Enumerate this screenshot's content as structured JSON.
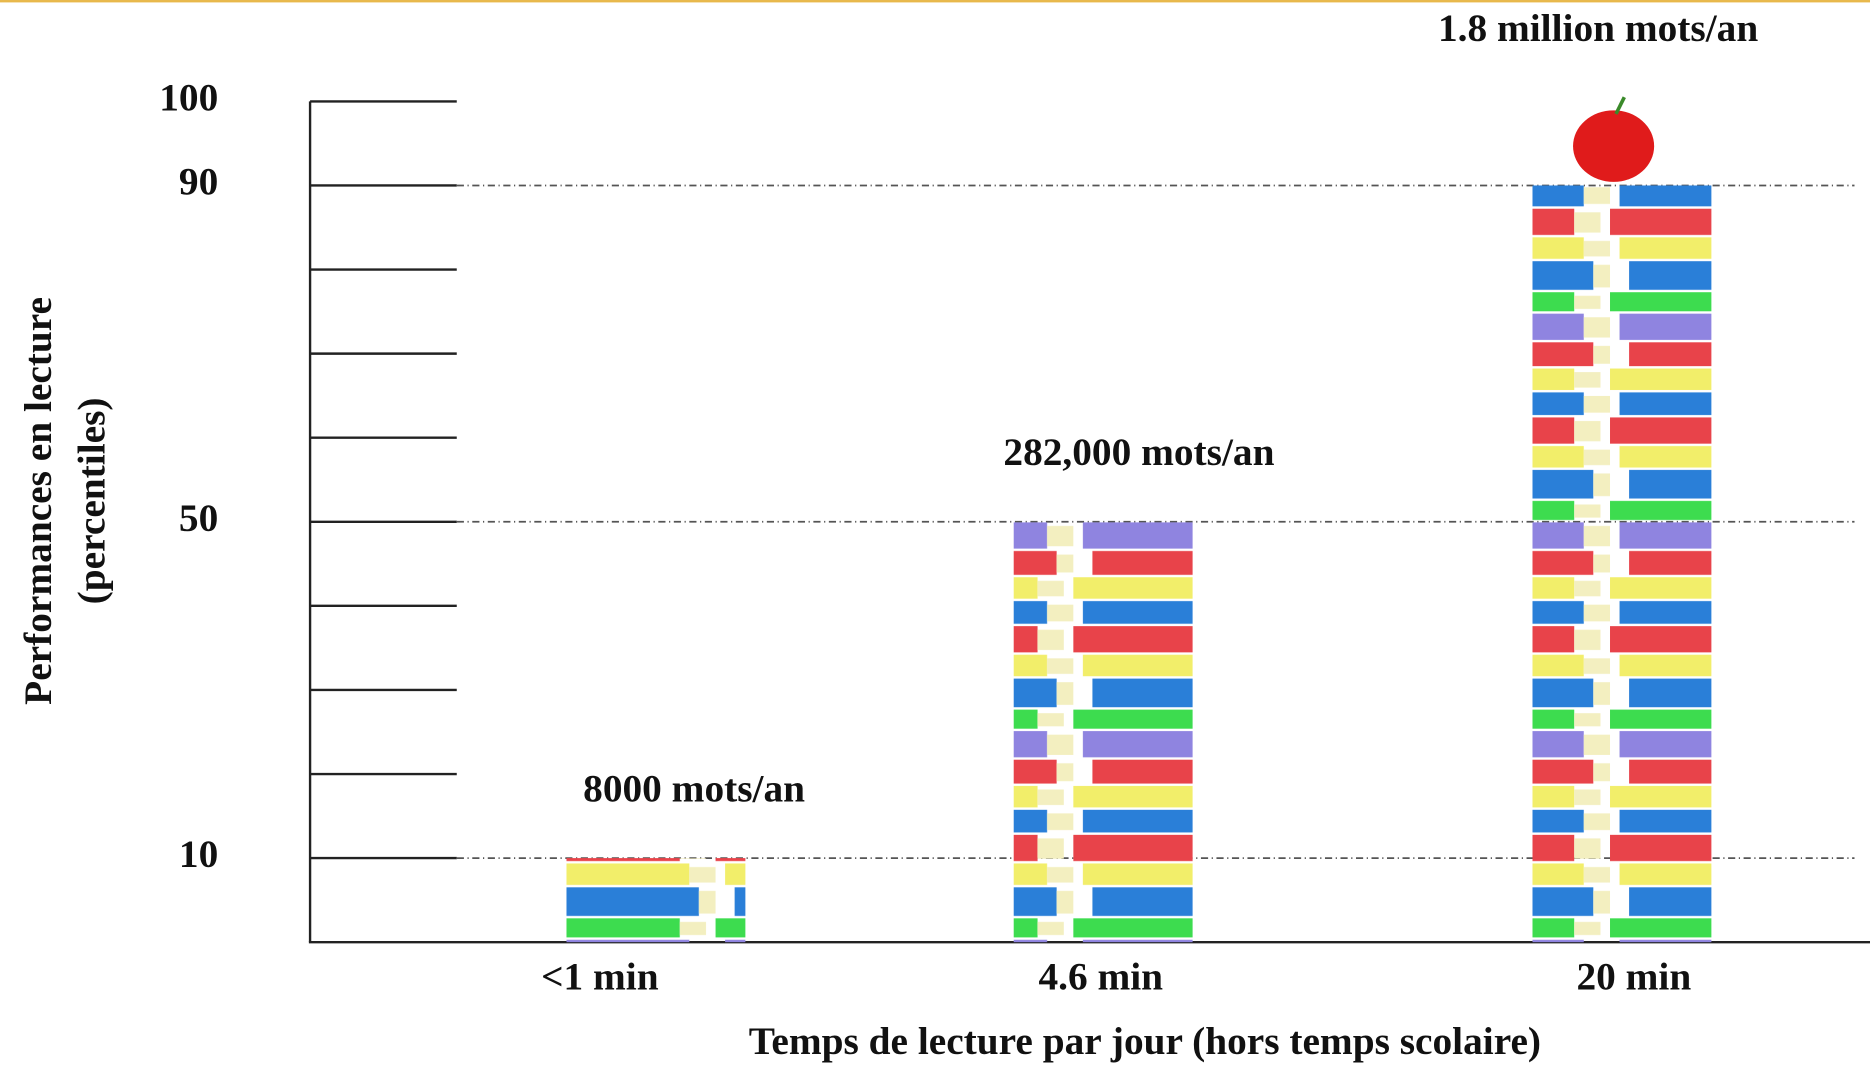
{
  "chart_data": {
    "type": "bar",
    "ylabel": [
      "Performances en lecture",
      "(percentiles)"
    ],
    "xlabel": "Temps de lecture par jour (hors temps scolaire)",
    "categories": [
      "<1 min",
      "4.6 min",
      "20 min"
    ],
    "values": [
      10,
      50,
      90
    ],
    "bar_labels": [
      "8000 mots/an",
      "282,000 mots/an",
      "1.8 million mots/an"
    ],
    "ylim": [
      0,
      100
    ],
    "yticks": [
      10,
      50,
      90,
      100
    ],
    "minor_yticks": [
      20,
      30,
      40,
      60,
      70,
      80
    ],
    "grid": true,
    "colors": [
      "#e8434a",
      "#f2ee6a",
      "#2a7fd8",
      "#3ddc4f",
      "#8f84e0"
    ]
  }
}
